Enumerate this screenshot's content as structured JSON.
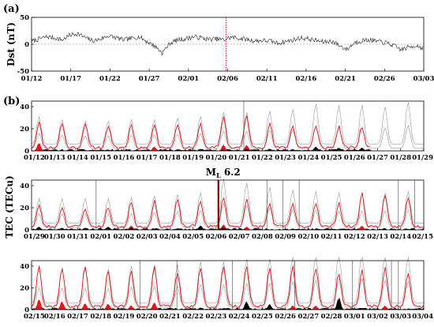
{
  "chart_data": [
    {
      "type": "line",
      "panel_label": "(a)",
      "ylabel": "Dst (nT)",
      "ylim": [
        -50,
        50
      ],
      "yticks": [
        -50,
        0,
        50
      ],
      "xlim_days": [
        0,
        52
      ],
      "x_tick_labels": [
        "01/12",
        "01/17",
        "01/22",
        "01/27",
        "02/01",
        "02/06",
        "02/11",
        "02/16",
        "02/21",
        "02/26",
        "03/03"
      ],
      "event_marker": {
        "label": "02/06 earthquake",
        "day": 25.8,
        "color": "#e00000",
        "style": "dotted"
      },
      "zero_line": true,
      "series": [
        {
          "values": [
            5,
            10,
            14,
            12,
            8,
            17,
            20,
            12,
            6,
            10,
            16,
            12,
            8,
            11,
            14,
            5,
            -3,
            -16,
            2,
            8,
            10,
            14,
            12,
            9,
            10,
            8,
            13,
            11,
            9,
            6,
            7,
            6,
            2,
            5,
            8,
            12,
            10,
            7,
            4,
            6,
            -2,
            -10,
            3,
            7,
            8,
            5,
            3,
            -2,
            -10,
            -6,
            -2,
            -8
          ]
        }
      ]
    },
    {
      "type": "area",
      "panel_label": "(b)",
      "ylabel": "TEC (TECu)",
      "ylim": [
        0,
        45
      ],
      "yticks": [
        0,
        20,
        40
      ],
      "x_tick_labels": [
        "01/12",
        "01/13",
        "01/14",
        "01/15",
        "01/16",
        "01/17",
        "01/18",
        "01/19",
        "01/20",
        "01/21",
        "01/22",
        "01/23",
        "01/24",
        "01/25",
        "01/26",
        "01/27",
        "01/28",
        "01/29"
      ],
      "observed_peaks": [
        26,
        25,
        25,
        23,
        24,
        25,
        25,
        24,
        31,
        32,
        25,
        23,
        22,
        22,
        22,
        21,
        0,
        0
      ],
      "median_peaks": [
        22,
        20,
        19,
        19,
        20,
        20,
        21,
        22,
        25,
        25,
        26,
        27,
        31,
        30,
        30,
        29,
        32,
        30
      ],
      "data_gap_days": [
        14.7,
        17
      ],
      "red_anomaly_peaks": [
        8,
        0,
        0,
        0,
        0,
        4,
        0,
        0,
        6,
        6,
        0,
        0,
        0,
        0,
        0,
        0,
        0,
        0
      ],
      "black_anomaly_peaks": [
        0,
        0,
        0,
        0,
        0,
        0,
        1,
        1,
        1,
        2,
        2,
        0,
        4,
        3,
        3,
        0,
        0,
        0
      ],
      "vertical_markers_days": [
        9.2
      ]
    },
    {
      "type": "area",
      "event_label": "M",
      "event_label_sub": "L",
      "event_label_value": "6.2",
      "x_tick_labels": [
        "01/29",
        "01/30",
        "01/31",
        "02/01",
        "02/02",
        "02/03",
        "02/04",
        "02/05",
        "02/06",
        "02/07",
        "02/08",
        "02/09",
        "02/10",
        "02/11",
        "02/12",
        "02/13",
        "02/14",
        "02/15"
      ],
      "observed_peaks": [
        22,
        21,
        20,
        21,
        26,
        26,
        27,
        27,
        30,
        28,
        24,
        24,
        25,
        25,
        33,
        30,
        29,
        25
      ],
      "median_peaks": [
        20,
        20,
        20,
        20,
        21,
        22,
        23,
        24,
        34,
        31,
        28,
        26,
        25,
        24,
        24,
        24,
        25,
        25
      ],
      "red_anomaly_peaks": [
        0,
        0,
        0,
        0,
        4,
        0,
        0,
        0,
        5,
        3,
        0,
        0,
        0,
        0,
        4,
        0,
        0,
        0
      ],
      "black_anomaly_peaks": [
        3,
        2,
        2,
        3,
        2,
        0,
        1,
        4,
        2,
        0,
        0,
        0,
        0,
        0,
        0,
        0,
        0,
        0
      ],
      "event_day": 8.1,
      "vertical_markers_days": [
        2.8,
        10.2,
        10.9,
        11.6,
        15.9,
        16.6
      ]
    },
    {
      "type": "area",
      "x_tick_labels": [
        "02/15",
        "02/16",
        "02/17",
        "02/18",
        "02/19",
        "02/20",
        "02/21",
        "02/22",
        "02/23",
        "02/24",
        "02/25",
        "02/26",
        "02/27",
        "02/28",
        "03/01",
        "03/02",
        "03/03",
        "03/04"
      ],
      "observed_peaks": [
        42,
        38,
        40,
        36,
        35,
        40,
        34,
        38,
        40,
        40,
        38,
        40,
        39,
        34,
        36,
        39,
        33,
        27
      ],
      "median_peaks": [
        28,
        28,
        27,
        27,
        29,
        30,
        30,
        32,
        32,
        34,
        34,
        36,
        38,
        40,
        40,
        38,
        36,
        34
      ],
      "red_anomaly_peaks": [
        10,
        8,
        6,
        6,
        4,
        7,
        0,
        0,
        0,
        0,
        3,
        4,
        4,
        0,
        0,
        4,
        0,
        0
      ],
      "black_anomaly_peaks": [
        0,
        0,
        0,
        0,
        0,
        0,
        0,
        2,
        0,
        8,
        5,
        0,
        0,
        12,
        0,
        0,
        0,
        0
      ],
      "vertical_markers_days": [
        4.7,
        6.3,
        8.7,
        11.4,
        13.9,
        15.6,
        15.9
      ]
    }
  ]
}
